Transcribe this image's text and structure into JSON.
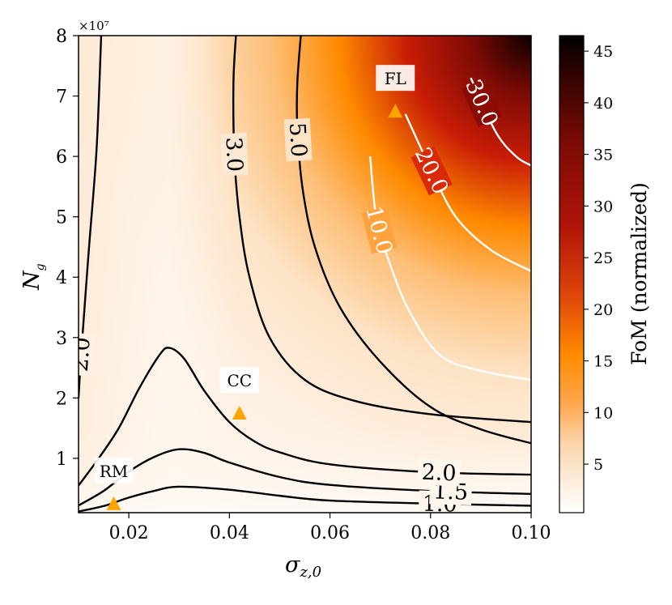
{
  "chart_data": {
    "type": "heatmap",
    "subtype": "contour",
    "xlabel_main": "σ",
    "xlabel_sub": "z,0",
    "ylabel_main": "N",
    "ylabel_sub": "g",
    "y_multiplier": "×10⁷",
    "xlim": [
      0.01,
      0.1
    ],
    "ylim": [
      1000000,
      80000000
    ],
    "x_ticks": [
      "0.02",
      "0.04",
      "0.06",
      "0.08",
      "0.10"
    ],
    "x_tick_values": [
      0.02,
      0.04,
      0.06,
      0.08,
      0.1
    ],
    "y_ticks": [
      "1",
      "2",
      "3",
      "4",
      "5",
      "6",
      "7",
      "8"
    ],
    "y_tick_values": [
      1,
      2,
      3,
      4,
      5,
      6,
      7,
      8
    ],
    "colorbar": {
      "label": "FoM (normalized)",
      "range": [
        0.3,
        46.5
      ],
      "ticks": [
        "5",
        "10",
        "15",
        "20",
        "25",
        "30",
        "35",
        "40",
        "45"
      ],
      "tick_values": [
        5,
        10,
        15,
        20,
        25,
        30,
        35,
        40,
        45
      ],
      "colormap": [
        "#ffffff",
        "#fde9d4",
        "#fbd3a6",
        "#ffa64d",
        "#ff8c00",
        "#e0480a",
        "#b01408",
        "#7a0a05",
        "#2a0300",
        "#000000"
      ]
    },
    "contours": [
      {
        "level": "1.0",
        "color": "#000000",
        "points": [
          [
            0.01,
            1.2
          ],
          [
            0.015,
            2.1
          ],
          [
            0.02,
            3.5
          ],
          [
            0.025,
            4.6
          ],
          [
            0.03,
            5.3
          ],
          [
            0.04,
            4.8
          ],
          [
            0.05,
            3.8
          ],
          [
            0.06,
            3.0
          ],
          [
            0.08,
            2.5
          ],
          [
            0.1,
            2.15
          ]
        ]
      },
      {
        "level": "1.5",
        "color": "#000000",
        "points": [
          [
            0.01,
            2.2
          ],
          [
            0.015,
            4.6
          ],
          [
            0.02,
            7.8
          ],
          [
            0.025,
            10.2
          ],
          [
            0.03,
            11.5
          ],
          [
            0.035,
            10.9
          ],
          [
            0.04,
            9.3
          ],
          [
            0.05,
            6.9
          ],
          [
            0.06,
            5.6
          ],
          [
            0.08,
            4.6
          ],
          [
            0.1,
            4.1
          ]
        ]
      },
      {
        "level": "2.0",
        "color": "#000000",
        "points": [
          [
            0.01,
            5.5
          ],
          [
            0.014,
            10.0
          ],
          [
            0.018,
            15.0
          ],
          [
            0.022,
            21.5
          ],
          [
            0.026,
            27.0
          ],
          [
            0.028,
            28.3
          ],
          [
            0.031,
            26.5
          ],
          [
            0.035,
            21.2
          ],
          [
            0.04,
            16.0
          ],
          [
            0.045,
            12.8
          ],
          [
            0.05,
            11.0
          ],
          [
            0.06,
            9.0
          ],
          [
            0.08,
            7.7
          ],
          [
            0.1,
            7.3
          ]
        ]
      },
      {
        "level": "2.0",
        "color": "#000000",
        "points": [
          [
            0.0145,
            80.0
          ],
          [
            0.0142,
            73.0
          ],
          [
            0.0135,
            60.0
          ],
          [
            0.012,
            44.0
          ],
          [
            0.0105,
            27.0
          ],
          [
            0.01,
            20.0
          ]
        ]
      },
      {
        "level": "3.0",
        "color": "#000000",
        "points": [
          [
            0.0413,
            80.0
          ],
          [
            0.0408,
            72.0
          ],
          [
            0.041,
            60.0
          ],
          [
            0.042,
            50.0
          ],
          [
            0.044,
            40.0
          ],
          [
            0.048,
            30.0
          ],
          [
            0.055,
            23.0
          ],
          [
            0.065,
            19.5
          ],
          [
            0.08,
            17.3
          ],
          [
            0.1,
            16.0
          ]
        ]
      },
      {
        "level": "5.0",
        "color": "#000000",
        "points": [
          [
            0.0542,
            80.0
          ],
          [
            0.0535,
            72.0
          ],
          [
            0.0535,
            65.0
          ],
          [
            0.0545,
            55.0
          ],
          [
            0.057,
            45.0
          ],
          [
            0.062,
            35.0
          ],
          [
            0.07,
            26.0
          ],
          [
            0.08,
            18.5
          ],
          [
            0.09,
            14.8
          ],
          [
            0.1,
            12.5
          ]
        ]
      },
      {
        "level": "10.0",
        "color": "#ffffff",
        "points": [
          [
            0.068,
            60.0
          ],
          [
            0.0692,
            50.0
          ],
          [
            0.072,
            42.0
          ],
          [
            0.076,
            34.0
          ],
          [
            0.082,
            27.0
          ],
          [
            0.09,
            24.5
          ],
          [
            0.1,
            23.0
          ]
        ]
      },
      {
        "level": "20.0",
        "color": "#ffffff",
        "points": [
          [
            0.075,
            67.0
          ],
          [
            0.08,
            58.0
          ],
          [
            0.085,
            50.0
          ],
          [
            0.092,
            44.5
          ],
          [
            0.1,
            41.0
          ]
        ]
      },
      {
        "level": "30.0",
        "color": "#ffffff",
        "points": [
          [
            0.088,
            73.0
          ],
          [
            0.093,
            64.0
          ],
          [
            0.097,
            60.0
          ],
          [
            0.1,
            58.5
          ]
        ]
      }
    ],
    "contour_labels": [
      "1.0",
      "1.5",
      "2.0",
      "2.0",
      "3.0",
      "5.0",
      "10.0",
      "20.0",
      "30.0"
    ],
    "points": [
      {
        "label": "RM",
        "x": 0.017,
        "y": 2500000,
        "color": "#ffa500"
      },
      {
        "label": "CC",
        "x": 0.042,
        "y": 17500000,
        "color": "#ffa500"
      },
      {
        "label": "FL",
        "x": 0.073,
        "y": 67500000,
        "color": "#ffa500"
      }
    ]
  }
}
